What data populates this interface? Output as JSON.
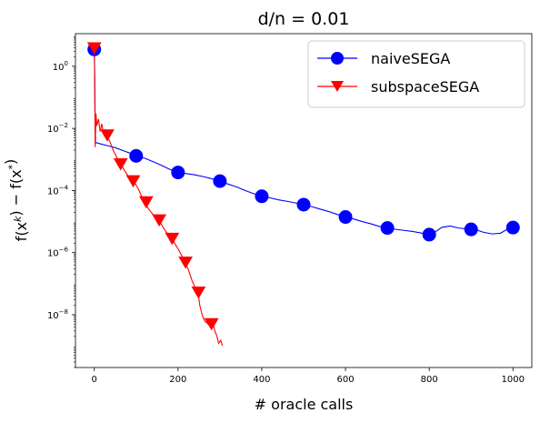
{
  "chart_data": {
    "type": "line",
    "title": "d/n = 0.01",
    "xlabel": "# oracle calls",
    "ylabel": "f(x^k) − f(x^*)",
    "yscale": "log",
    "xlim": [
      -45,
      1045
    ],
    "ylim_log10": [
      -9.7,
      1.05
    ],
    "x_ticks": [
      0,
      200,
      400,
      600,
      800,
      1000
    ],
    "y_ticks": [
      {
        "exp": 0,
        "label": "10^0"
      },
      {
        "exp": -2,
        "label": "10^−2"
      },
      {
        "exp": -4,
        "label": "10^−4"
      },
      {
        "exp": -6,
        "label": "10^−6"
      },
      {
        "exp": -8,
        "label": "10^−8"
      }
    ],
    "legend_position": "top-right",
    "series": [
      {
        "name": "naiveSEGA",
        "color": "#0000ff",
        "marker": "circle",
        "line": [
          [
            0,
            3.5
          ],
          [
            1,
            0.5
          ],
          [
            2,
            0.02
          ],
          [
            3,
            0.0035
          ],
          [
            10,
            0.0033
          ],
          [
            30,
            0.0028
          ],
          [
            50,
            0.0024
          ],
          [
            70,
            0.0019
          ],
          [
            85,
            0.0016
          ],
          [
            100,
            0.0013
          ],
          [
            120,
            0.0011
          ],
          [
            140,
            0.00085
          ],
          [
            160,
            0.00065
          ],
          [
            180,
            0.00048
          ],
          [
            200,
            0.00038
          ],
          [
            220,
            0.00035
          ],
          [
            240,
            0.00032
          ],
          [
            260,
            0.00028
          ],
          [
            280,
            0.00024
          ],
          [
            300,
            0.0002
          ],
          [
            320,
            0.00016
          ],
          [
            340,
            0.00013
          ],
          [
            360,
            0.0001
          ],
          [
            380,
            8e-05
          ],
          [
            400,
            6.5e-05
          ],
          [
            420,
            5.8e-05
          ],
          [
            440,
            5e-05
          ],
          [
            460,
            4.5e-05
          ],
          [
            480,
            4e-05
          ],
          [
            500,
            3.5e-05
          ],
          [
            520,
            3e-05
          ],
          [
            540,
            2.5e-05
          ],
          [
            560,
            2.1e-05
          ],
          [
            580,
            1.7e-05
          ],
          [
            600,
            1.4e-05
          ],
          [
            620,
            1.2e-05
          ],
          [
            640,
            1e-05
          ],
          [
            660,
            8.5e-06
          ],
          [
            680,
            7e-06
          ],
          [
            700,
            6.2e-06
          ],
          [
            720,
            5.6e-06
          ],
          [
            740,
            5.2e-06
          ],
          [
            760,
            4.8e-06
          ],
          [
            780,
            4.3e-06
          ],
          [
            795,
            3.8e-06
          ],
          [
            810,
            4.2e-06
          ],
          [
            830,
            6.5e-06
          ],
          [
            850,
            7.2e-06
          ],
          [
            870,
            6.2e-06
          ],
          [
            890,
            5.8e-06
          ],
          [
            910,
            5.5e-06
          ],
          [
            930,
            4.5e-06
          ],
          [
            950,
            4e-06
          ],
          [
            970,
            4.2e-06
          ],
          [
            985,
            5.5e-06
          ],
          [
            990,
            7.5e-06
          ],
          [
            1000,
            6.4e-06
          ]
        ],
        "markers": [
          [
            0,
            3.5
          ],
          [
            100,
            0.0013
          ],
          [
            200,
            0.00038
          ],
          [
            300,
            0.0002
          ],
          [
            400,
            6.5e-05
          ],
          [
            500,
            3.5e-05
          ],
          [
            600,
            1.4e-05
          ],
          [
            700,
            6.2e-06
          ],
          [
            800,
            3.8e-06
          ],
          [
            900,
            5.6e-06
          ],
          [
            1000,
            6.4e-06
          ]
        ]
      },
      {
        "name": "subspaceSEGA",
        "color": "#ff0000",
        "marker": "triangle-down",
        "line": [
          [
            0,
            3.8
          ],
          [
            1,
            0.3
          ],
          [
            2,
            0.0025
          ],
          [
            4,
            0.03
          ],
          [
            6,
            0.012
          ],
          [
            10,
            0.02
          ],
          [
            14,
            0.008
          ],
          [
            18,
            0.014
          ],
          [
            22,
            0.007
          ],
          [
            26,
            0.009
          ],
          [
            31,
            0.006
          ],
          [
            38,
            0.0035
          ],
          [
            45,
            0.002
          ],
          [
            52,
            0.0013
          ],
          [
            58,
            0.0009
          ],
          [
            63,
            0.0007
          ],
          [
            70,
            0.0005
          ],
          [
            78,
            0.00033
          ],
          [
            86,
            0.00025
          ],
          [
            93,
            0.0002
          ],
          [
            100,
            0.00015
          ],
          [
            107,
            0.0001
          ],
          [
            114,
            6e-05
          ],
          [
            121,
            4e-05
          ],
          [
            130,
            2.5e-05
          ],
          [
            140,
            1.7e-05
          ],
          [
            148,
            1.4e-05
          ],
          [
            155,
            1.1e-05
          ],
          [
            163,
            7e-06
          ],
          [
            170,
            5e-06
          ],
          [
            178,
            3.5e-06
          ],
          [
            186,
            2.8e-06
          ],
          [
            194,
            1.8e-06
          ],
          [
            202,
            1.2e-06
          ],
          [
            210,
            7.5e-07
          ],
          [
            218,
            4.8e-07
          ],
          [
            226,
            2.5e-07
          ],
          [
            234,
            1.2e-07
          ],
          [
            240,
            8e-08
          ],
          [
            248,
            5e-08
          ],
          [
            252,
            2e-08
          ],
          [
            256,
            1.2e-08
          ],
          [
            260,
            8e-09
          ],
          [
            265,
            6e-09
          ],
          [
            272,
            5e-09
          ],
          [
            278,
            4e-09
          ],
          [
            284,
            5e-09
          ],
          [
            288,
            3e-09
          ],
          [
            293,
            2e-09
          ],
          [
            297,
            1.2e-09
          ],
          [
            302,
            1.5e-09
          ],
          [
            306,
            1e-09
          ]
        ],
        "markers": [
          [
            0,
            3.8
          ],
          [
            31,
            0.006
          ],
          [
            63,
            0.0007
          ],
          [
            93,
            0.0002
          ],
          [
            124,
            4.2e-05
          ],
          [
            155,
            1.1e-05
          ],
          [
            186,
            2.8e-06
          ],
          [
            218,
            4.8e-07
          ],
          [
            249,
            5.2e-08
          ],
          [
            280,
            5e-09
          ]
        ]
      }
    ]
  }
}
